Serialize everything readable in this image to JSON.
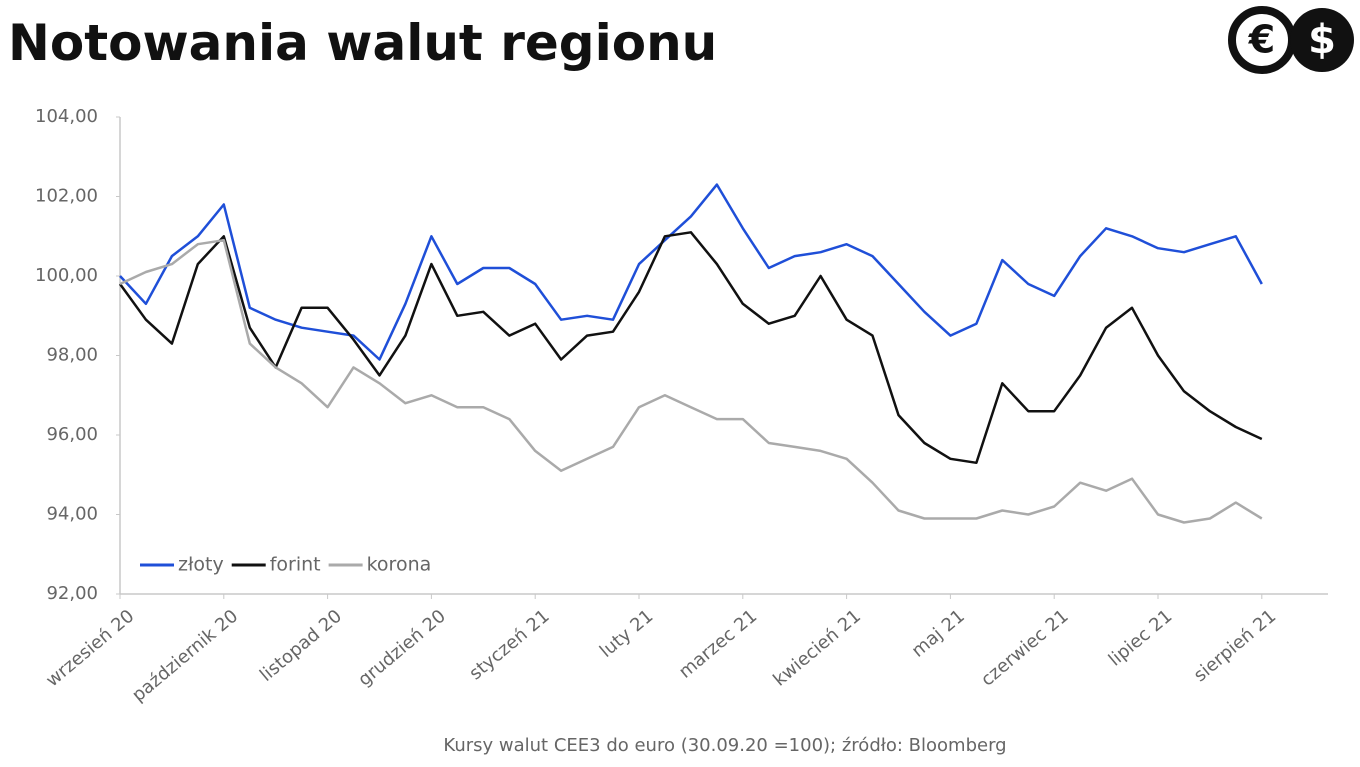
{
  "chart_data": {
    "type": "line",
    "title": "Notowania walut regionu",
    "logo": [
      "€",
      "$"
    ],
    "source": "Kursy walut CEE3 do euro (30.09.20 =100); źródło: Bloomberg",
    "categories": [
      "wrzesień 20",
      null,
      null,
      null,
      "październik 20",
      null,
      null,
      null,
      "listopad 20",
      null,
      null,
      null,
      "grudzień 20",
      null,
      null,
      null,
      "styczeń 21",
      null,
      null,
      null,
      "luty 21",
      null,
      null,
      null,
      "marzec 21",
      null,
      null,
      null,
      "kwiecień 21",
      null,
      null,
      null,
      "maj 21",
      null,
      null,
      null,
      "czerwiec 21",
      null,
      null,
      null,
      "lipiec 21",
      null,
      null,
      null,
      "sierpień 21"
    ],
    "series": [
      {
        "name": "złoty",
        "color": "#1f4fd8",
        "values": [
          100,
          99.3,
          100.5,
          101.0,
          101.8,
          99.2,
          98.9,
          98.7,
          98.6,
          98.5,
          97.9,
          99.3,
          101.0,
          99.8,
          100.2,
          100.2,
          99.8,
          98.9,
          99.0,
          98.9,
          100.3,
          100.9,
          101.5,
          102.3,
          101.2,
          100.2,
          100.5,
          100.6,
          100.8,
          100.5,
          99.8,
          99.1,
          98.5,
          98.8,
          100.4,
          99.8,
          99.5,
          100.5,
          101.2,
          101.0,
          100.7,
          100.6,
          100.8,
          101.0,
          99.8
        ]
      },
      {
        "name": "forint",
        "color": "#111111",
        "values": [
          99.8,
          98.9,
          98.3,
          100.3,
          101.0,
          98.7,
          97.7,
          99.2,
          99.2,
          98.4,
          97.5,
          98.5,
          100.3,
          99.0,
          99.1,
          98.5,
          98.8,
          97.9,
          98.5,
          98.6,
          99.6,
          101.0,
          101.1,
          100.3,
          99.3,
          98.8,
          99.0,
          100.0,
          98.9,
          98.5,
          96.5,
          95.8,
          95.4,
          95.3,
          97.3,
          96.6,
          96.6,
          97.5,
          98.7,
          99.2,
          98.0,
          97.1,
          96.6,
          96.2,
          95.9
        ]
      },
      {
        "name": "korona",
        "color": "#aaaaaa",
        "values": [
          99.8,
          100.1,
          100.3,
          100.8,
          100.9,
          98.3,
          97.7,
          97.3,
          96.7,
          97.7,
          97.3,
          96.8,
          97.0,
          96.7,
          96.7,
          96.4,
          95.6,
          95.1,
          95.4,
          95.7,
          96.7,
          97.0,
          96.7,
          96.4,
          96.4,
          95.8,
          95.7,
          95.6,
          95.4,
          94.8,
          94.1,
          93.9,
          93.9,
          93.9,
          94.1,
          94.0,
          94.2,
          94.8,
          94.6,
          94.9,
          94.0,
          93.8,
          93.9,
          94.3,
          93.9
        ]
      }
    ],
    "ylim": [
      92,
      104
    ],
    "yticks": [
      {
        "value": 92,
        "label": "92,00"
      },
      {
        "value": 94,
        "label": "94,00"
      },
      {
        "value": 96,
        "label": "96,00"
      },
      {
        "value": 98,
        "label": "98,00"
      },
      {
        "value": 100,
        "label": "100,00"
      },
      {
        "value": 102,
        "label": "102,00"
      },
      {
        "value": 104,
        "label": "104,00"
      }
    ],
    "legend": "lower left"
  }
}
